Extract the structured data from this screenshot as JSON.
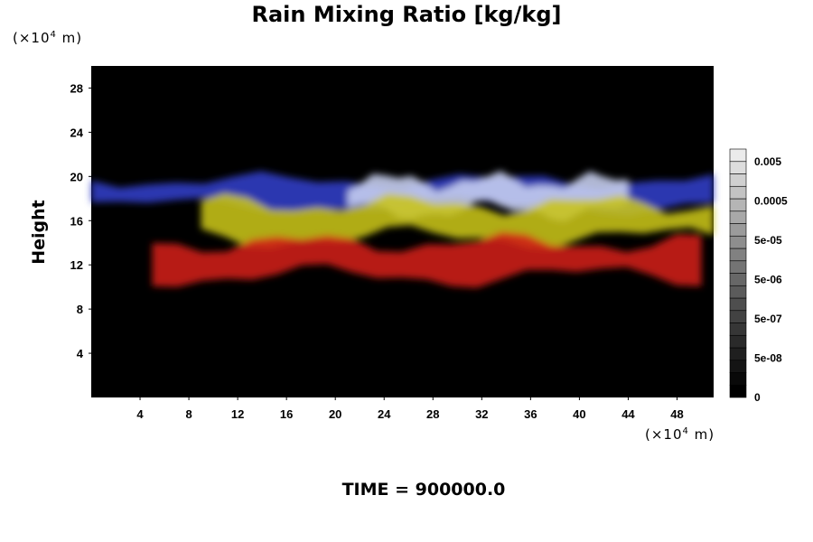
{
  "chart_data": {
    "type": "heatmap",
    "title": "Rain Mixing Ratio [kg/kg]",
    "ylabel": "Height",
    "y_unit_base": "(×10",
    "y_unit_exp": "4",
    "y_unit_tail": " m)",
    "x_unit_base": "(×10",
    "x_unit_exp": "4",
    "x_unit_tail": " m)",
    "xlim": [
      0,
      51
    ],
    "ylim": [
      0,
      30
    ],
    "x_ticks": [
      "4",
      "8",
      "12",
      "16",
      "20",
      "24",
      "28",
      "32",
      "36",
      "40",
      "44",
      "48"
    ],
    "y_ticks": [
      "4",
      "8",
      "12",
      "16",
      "20",
      "24",
      "28"
    ],
    "colorbar_labels": [
      "0.005",
      "0.0005",
      "5e-05",
      "5e-06",
      "5e-07",
      "5e-08",
      "0"
    ],
    "background_color": "#000000",
    "bands": [
      {
        "color": "#3340c8",
        "y_range": [
          17,
          20
        ],
        "x_range": [
          0,
          51
        ]
      },
      {
        "color": "#c8d0f0",
        "y_range": [
          16.5,
          20
        ],
        "x_range": [
          21,
          44
        ]
      },
      {
        "color": "#c8c41a",
        "y_range": [
          14,
          18
        ],
        "x_range": [
          9,
          51
        ]
      },
      {
        "color": "#d0201a",
        "y_range": [
          10.5,
          14.5
        ],
        "x_range": [
          5,
          50
        ]
      }
    ]
  },
  "footer": {
    "time_label": "TIME = 900000.0"
  }
}
